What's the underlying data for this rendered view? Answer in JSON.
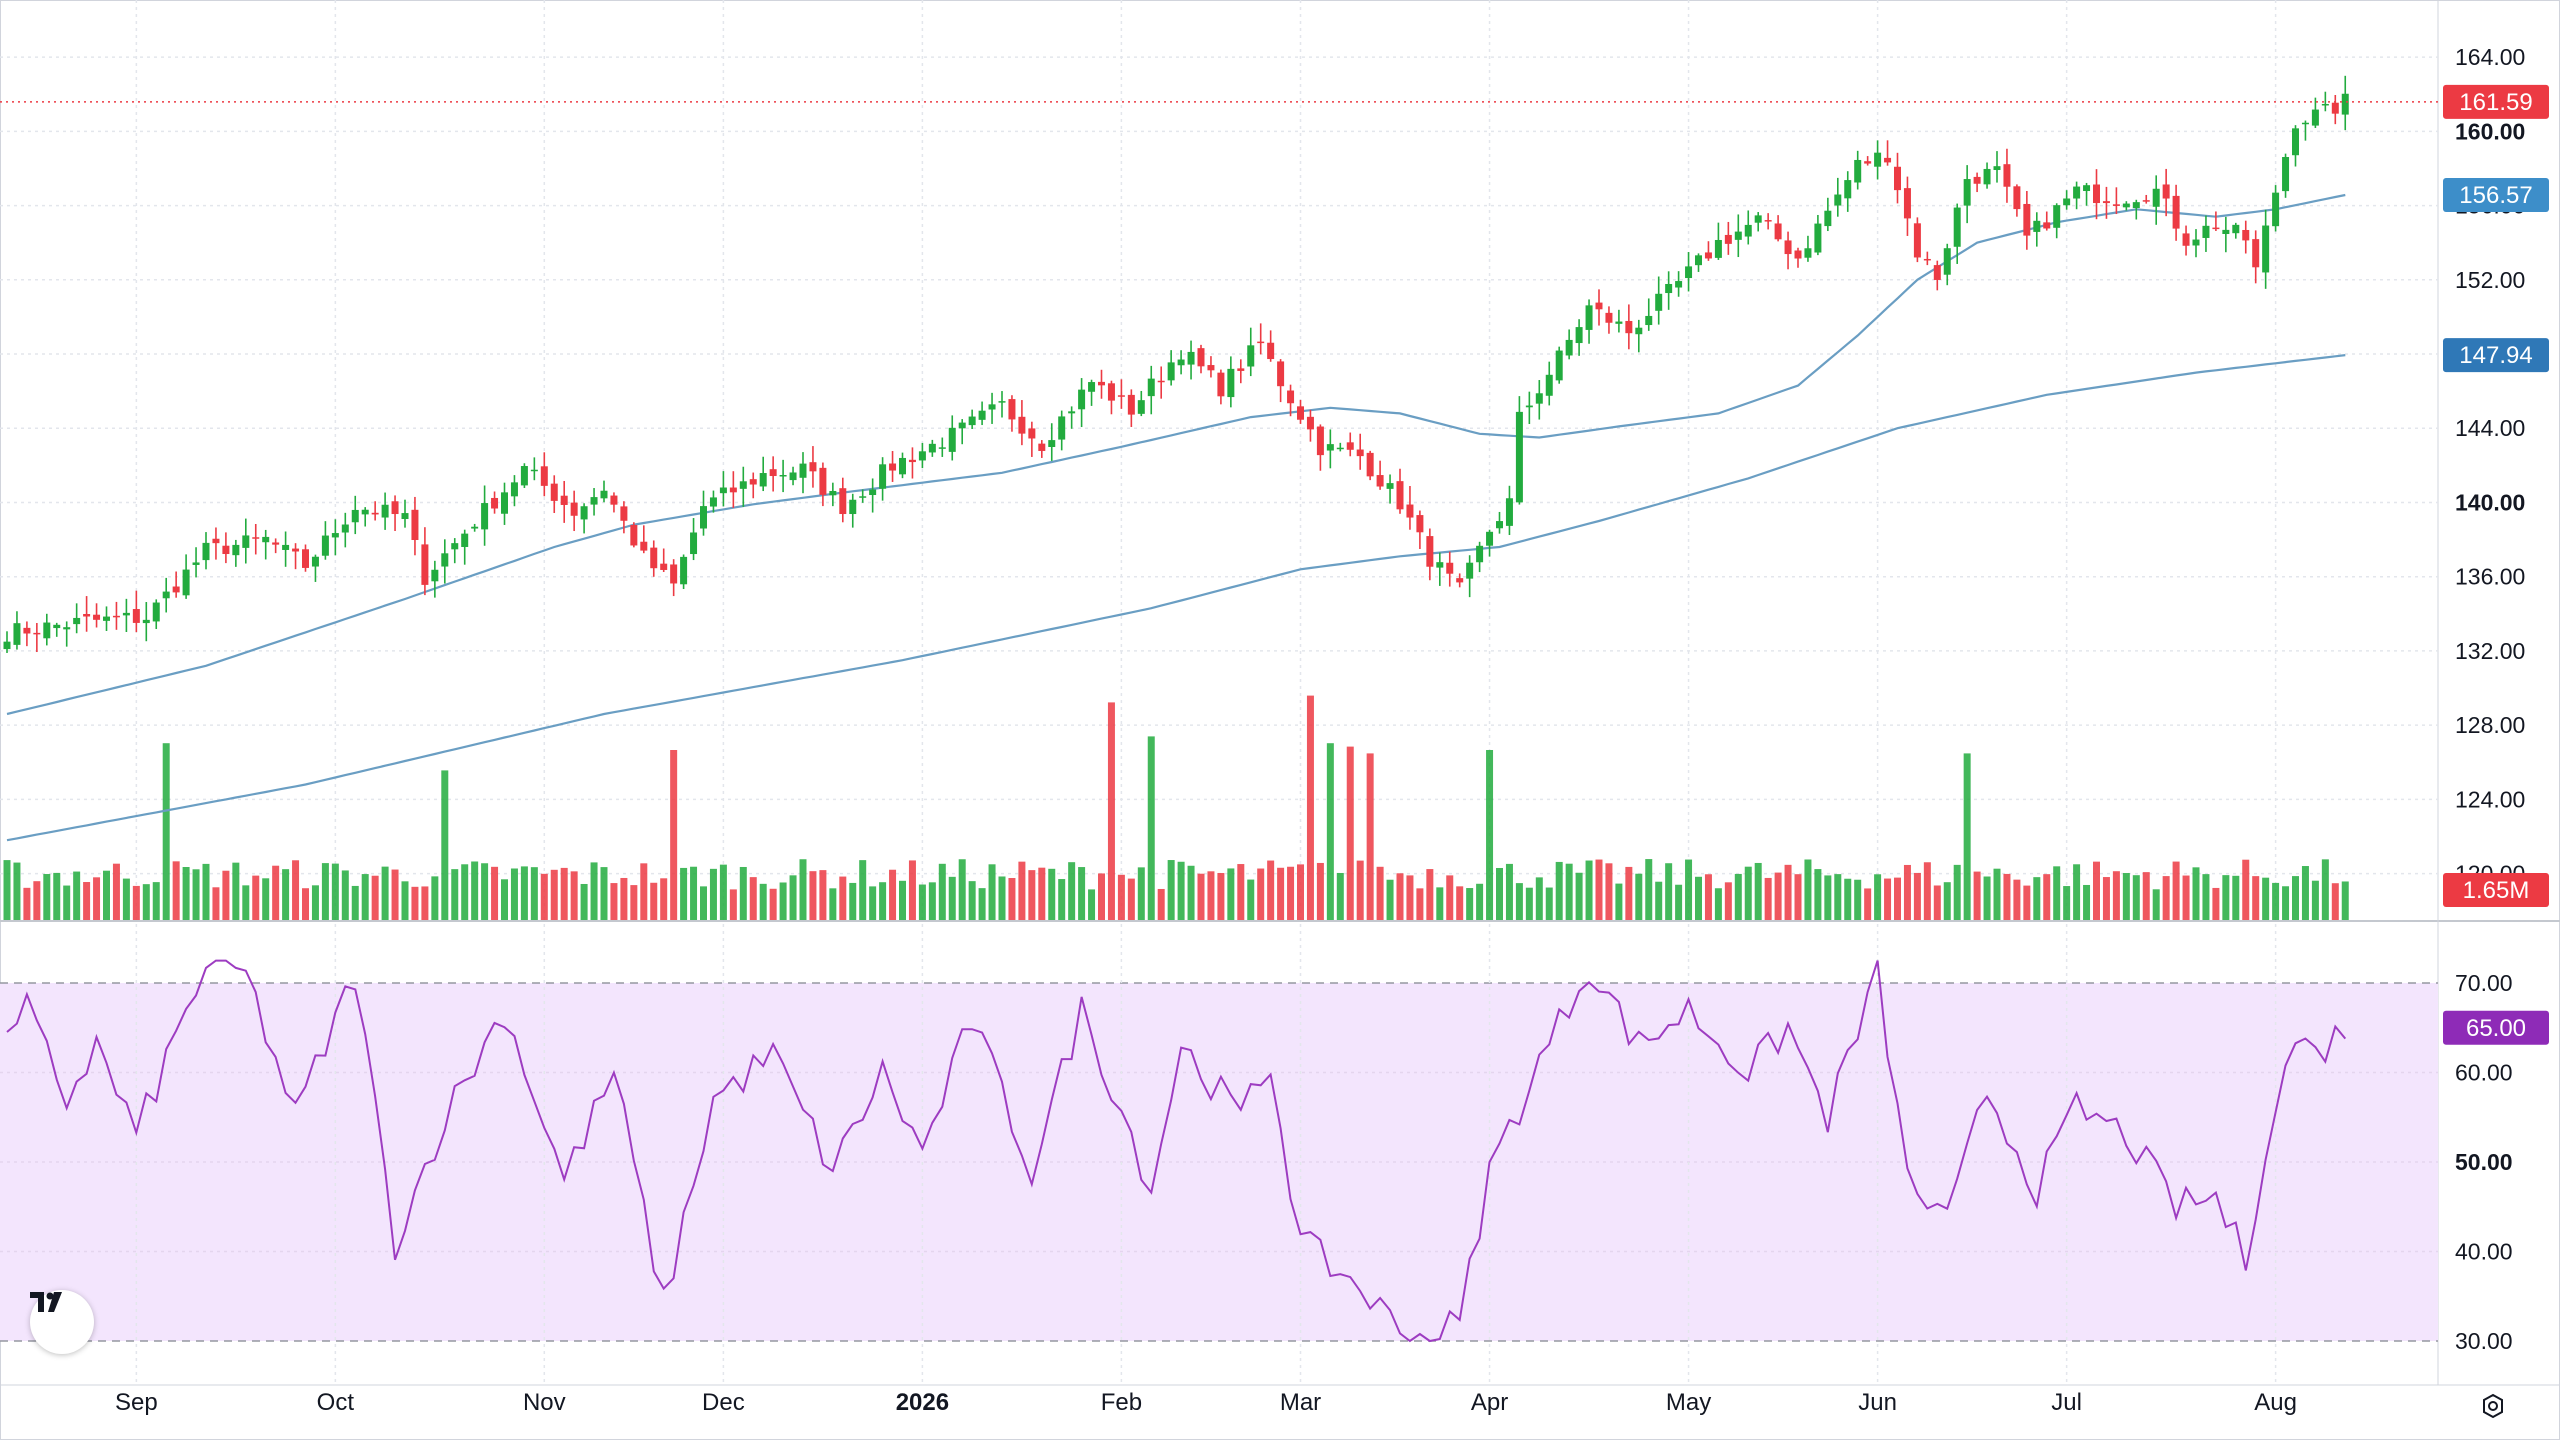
{
  "chart_data": {
    "type": "candlestick",
    "price": {
      "last": "161.59",
      "ma_fast_label": "156.57",
      "ma_slow_label": "147.94",
      "ylim": [
        117.5,
        166
      ],
      "ticks": [
        {
          "v": 164,
          "label": "164.00",
          "bold": false
        },
        {
          "v": 160,
          "label": "160.00",
          "bold": true
        },
        {
          "v": 156,
          "label": "156.00",
          "bold": false
        },
        {
          "v": 152,
          "label": "152.00",
          "bold": false
        },
        {
          "v": 148,
          "label": "148.00",
          "bold": false
        },
        {
          "v": 144,
          "label": "144.00",
          "bold": false
        },
        {
          "v": 140,
          "label": "140.00",
          "bold": true
        },
        {
          "v": 136,
          "label": "136.00",
          "bold": false
        },
        {
          "v": 132,
          "label": "132.00",
          "bold": false
        },
        {
          "v": 128,
          "label": "128.00",
          "bold": false
        },
        {
          "v": 124,
          "label": "124.00",
          "bold": false
        },
        {
          "v": 120,
          "label": "120.00",
          "bold": false
        }
      ],
      "anchors": [
        {
          "i": 0,
          "c": 133.0
        },
        {
          "i": 8,
          "c": 133.6
        },
        {
          "i": 14,
          "c": 133.8
        },
        {
          "i": 20,
          "c": 137.4
        },
        {
          "i": 26,
          "c": 138.0
        },
        {
          "i": 30,
          "c": 136.6
        },
        {
          "i": 35,
          "c": 139.8
        },
        {
          "i": 40,
          "c": 139.2
        },
        {
          "i": 42,
          "c": 136.0
        },
        {
          "i": 47,
          "c": 139.0
        },
        {
          "i": 52,
          "c": 141.8
        },
        {
          "i": 57,
          "c": 139.5
        },
        {
          "i": 60,
          "c": 140.8
        },
        {
          "i": 64,
          "c": 137.0
        },
        {
          "i": 67,
          "c": 135.5
        },
        {
          "i": 70,
          "c": 139.8
        },
        {
          "i": 76,
          "c": 141.5
        },
        {
          "i": 80,
          "c": 141.8
        },
        {
          "i": 84,
          "c": 139.8
        },
        {
          "i": 89,
          "c": 142.0
        },
        {
          "i": 95,
          "c": 143.6
        },
        {
          "i": 100,
          "c": 145.2
        },
        {
          "i": 104,
          "c": 143.2
        },
        {
          "i": 109,
          "c": 146.5
        },
        {
          "i": 113,
          "c": 145.0
        },
        {
          "i": 118,
          "c": 148.2
        },
        {
          "i": 122,
          "c": 146.2
        },
        {
          "i": 126,
          "c": 148.6
        },
        {
          "i": 128,
          "c": 146.5
        },
        {
          "i": 132,
          "c": 143.0
        },
        {
          "i": 136,
          "c": 142.5
        },
        {
          "i": 140,
          "c": 140.0
        },
        {
          "i": 143,
          "c": 137.0
        },
        {
          "i": 146,
          "c": 135.2
        },
        {
          "i": 149,
          "c": 138.5
        },
        {
          "i": 151,
          "c": 140.0
        },
        {
          "i": 152,
          "c": 144.5
        },
        {
          "i": 156,
          "c": 147.8
        },
        {
          "i": 159,
          "c": 150.5
        },
        {
          "i": 163,
          "c": 149.2
        },
        {
          "i": 168,
          "c": 151.8
        },
        {
          "i": 172,
          "c": 154.0
        },
        {
          "i": 176,
          "c": 155.2
        },
        {
          "i": 180,
          "c": 153.2
        },
        {
          "i": 186,
          "c": 158.2
        },
        {
          "i": 189,
          "c": 158.8
        },
        {
          "i": 192,
          "c": 153.5
        },
        {
          "i": 194,
          "c": 152.2
        },
        {
          "i": 197,
          "c": 157.5
        },
        {
          "i": 200,
          "c": 157.8
        },
        {
          "i": 203,
          "c": 154.2
        },
        {
          "i": 208,
          "c": 156.8
        },
        {
          "i": 212,
          "c": 156.4
        },
        {
          "i": 216,
          "c": 156.8
        },
        {
          "i": 219,
          "c": 154.2
        },
        {
          "i": 222,
          "c": 155.0
        },
        {
          "i": 225,
          "c": 154.2
        },
        {
          "i": 226,
          "c": 152.5
        },
        {
          "i": 228,
          "c": 156.8
        },
        {
          "i": 230,
          "c": 160.6
        },
        {
          "i": 233,
          "c": 161.0
        },
        {
          "i": 235,
          "c": 161.6
        }
      ],
      "ma_fast": [
        {
          "i": 0,
          "v": 128.6
        },
        {
          "i": 20,
          "v": 131.2
        },
        {
          "i": 40,
          "v": 134.8
        },
        {
          "i": 55,
          "v": 137.6
        },
        {
          "i": 63,
          "v": 138.8
        },
        {
          "i": 75,
          "v": 139.9
        },
        {
          "i": 85,
          "v": 140.6
        },
        {
          "i": 100,
          "v": 141.6
        },
        {
          "i": 112,
          "v": 143.0
        },
        {
          "i": 125,
          "v": 144.6
        },
        {
          "i": 133,
          "v": 145.1
        },
        {
          "i": 140,
          "v": 144.8
        },
        {
          "i": 148,
          "v": 143.7
        },
        {
          "i": 154,
          "v": 143.5
        },
        {
          "i": 162,
          "v": 144.1
        },
        {
          "i": 172,
          "v": 144.8
        },
        {
          "i": 180,
          "v": 146.3
        },
        {
          "i": 186,
          "v": 149.0
        },
        {
          "i": 192,
          "v": 152.0
        },
        {
          "i": 198,
          "v": 154.0
        },
        {
          "i": 206,
          "v": 155.1
        },
        {
          "i": 214,
          "v": 155.8
        },
        {
          "i": 222,
          "v": 155.4
        },
        {
          "i": 228,
          "v": 155.8
        },
        {
          "i": 235,
          "v": 156.57
        }
      ],
      "ma_slow": [
        {
          "i": 0,
          "v": 121.8
        },
        {
          "i": 30,
          "v": 124.8
        },
        {
          "i": 60,
          "v": 128.6
        },
        {
          "i": 90,
          "v": 131.5
        },
        {
          "i": 115,
          "v": 134.3
        },
        {
          "i": 130,
          "v": 136.4
        },
        {
          "i": 140,
          "v": 137.1
        },
        {
          "i": 150,
          "v": 137.6
        },
        {
          "i": 160,
          "v": 139.0
        },
        {
          "i": 175,
          "v": 141.3
        },
        {
          "i": 190,
          "v": 144.0
        },
        {
          "i": 205,
          "v": 145.8
        },
        {
          "i": 220,
          "v": 147.0
        },
        {
          "i": 235,
          "v": 147.94
        }
      ]
    },
    "volume": {
      "last": "1.65M",
      "spikes": [
        {
          "i": 16,
          "v": 2.6
        },
        {
          "i": 44,
          "v": 2.2
        },
        {
          "i": 67,
          "v": 2.5
        },
        {
          "i": 111,
          "v": 3.2
        },
        {
          "i": 115,
          "v": 2.7
        },
        {
          "i": 131,
          "v": 3.3
        },
        {
          "i": 133,
          "v": 2.6
        },
        {
          "i": 135,
          "v": 2.55
        },
        {
          "i": 137,
          "v": 2.45
        },
        {
          "i": 149,
          "v": 2.5
        },
        {
          "i": 197,
          "v": 2.45
        }
      ]
    },
    "rsi": {
      "last": "65.00",
      "ylim": [
        30,
        70
      ],
      "ticks": [
        {
          "v": 70,
          "label": "70.00",
          "bold": false
        },
        {
          "v": 60,
          "label": "60.00",
          "bold": false
        },
        {
          "v": 50,
          "label": "50.00",
          "bold": true
        },
        {
          "v": 40,
          "label": "40.00",
          "bold": false
        },
        {
          "v": 30,
          "label": "30.00",
          "bold": false
        }
      ],
      "anchors": [
        {
          "i": 0,
          "v": 63
        },
        {
          "i": 2,
          "v": 67
        },
        {
          "i": 6,
          "v": 57
        },
        {
          "i": 9,
          "v": 63
        },
        {
          "i": 13,
          "v": 53
        },
        {
          "i": 17,
          "v": 64
        },
        {
          "i": 20,
          "v": 72
        },
        {
          "i": 24,
          "v": 71
        },
        {
          "i": 29,
          "v": 55
        },
        {
          "i": 35,
          "v": 71
        },
        {
          "i": 39,
          "v": 41
        },
        {
          "i": 44,
          "v": 55
        },
        {
          "i": 50,
          "v": 67
        },
        {
          "i": 56,
          "v": 48
        },
        {
          "i": 61,
          "v": 60
        },
        {
          "i": 66,
          "v": 34
        },
        {
          "i": 71,
          "v": 57
        },
        {
          "i": 77,
          "v": 62
        },
        {
          "i": 83,
          "v": 49
        },
        {
          "i": 88,
          "v": 60
        },
        {
          "i": 92,
          "v": 51
        },
        {
          "i": 97,
          "v": 66
        },
        {
          "i": 103,
          "v": 49
        },
        {
          "i": 108,
          "v": 67
        },
        {
          "i": 112,
          "v": 56
        },
        {
          "i": 115,
          "v": 47
        },
        {
          "i": 118,
          "v": 63
        },
        {
          "i": 124,
          "v": 55
        },
        {
          "i": 127,
          "v": 61
        },
        {
          "i": 130,
          "v": 41
        },
        {
          "i": 136,
          "v": 36
        },
        {
          "i": 141,
          "v": 30
        },
        {
          "i": 146,
          "v": 32
        },
        {
          "i": 149,
          "v": 49
        },
        {
          "i": 154,
          "v": 61
        },
        {
          "i": 159,
          "v": 72
        },
        {
          "i": 164,
          "v": 63
        },
        {
          "i": 169,
          "v": 67
        },
        {
          "i": 175,
          "v": 60
        },
        {
          "i": 179,
          "v": 65
        },
        {
          "i": 183,
          "v": 55
        },
        {
          "i": 188,
          "v": 71
        },
        {
          "i": 191,
          "v": 48
        },
        {
          "i": 195,
          "v": 43
        },
        {
          "i": 199,
          "v": 58
        },
        {
          "i": 204,
          "v": 47
        },
        {
          "i": 208,
          "v": 56
        },
        {
          "i": 213,
          "v": 53
        },
        {
          "i": 218,
          "v": 45
        },
        {
          "i": 222,
          "v": 46
        },
        {
          "i": 225,
          "v": 39
        },
        {
          "i": 227,
          "v": 52
        },
        {
          "i": 230,
          "v": 64
        },
        {
          "i": 232,
          "v": 62
        },
        {
          "i": 235,
          "v": 65
        }
      ]
    },
    "x_axis": [
      {
        "i": 13,
        "label": "Sep",
        "bold": false
      },
      {
        "i": 33,
        "label": "Oct",
        "bold": false
      },
      {
        "i": 54,
        "label": "Nov",
        "bold": false
      },
      {
        "i": 72,
        "label": "Dec",
        "bold": false
      },
      {
        "i": 92,
        "label": "2026",
        "bold": true
      },
      {
        "i": 112,
        "label": "Feb",
        "bold": false
      },
      {
        "i": 130,
        "label": "Mar",
        "bold": false
      },
      {
        "i": 149,
        "label": "Apr",
        "bold": false
      },
      {
        "i": 169,
        "label": "May",
        "bold": false
      },
      {
        "i": 188,
        "label": "Jun",
        "bold": false
      },
      {
        "i": 207,
        "label": "Jul",
        "bold": false
      },
      {
        "i": 228,
        "label": "Aug",
        "bold": false
      }
    ],
    "n_bars": 236
  },
  "colors": {
    "up": "#22ab3e",
    "down": "#ec3a43",
    "ma": "#6a9ec3",
    "ma_fast_badge": "#3d8ec9",
    "ma_slow_badge": "#2f78b7",
    "last_price_badge": "#ec3a43",
    "rsi_line": "#9d3cc1",
    "rsi_badge": "#8e2bb7",
    "rsi_band": "#f3e5fd",
    "grid": "#e3e6ec"
  },
  "icons": {
    "logo": "tradingview-logo-icon",
    "settings": "settings-gear-icon"
  }
}
